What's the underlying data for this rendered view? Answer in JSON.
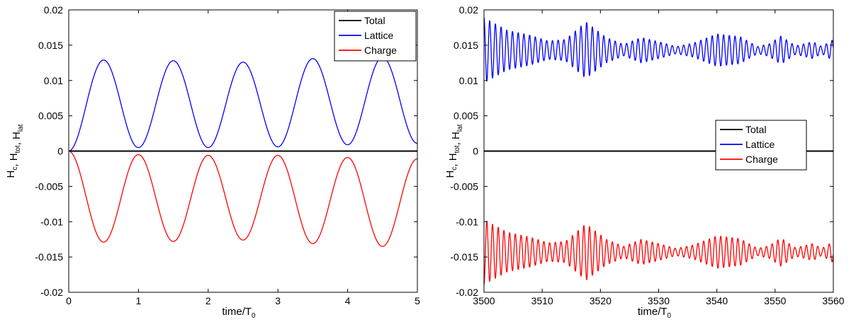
{
  "chart_data": [
    {
      "type": "line",
      "xlabel": "time/T",
      "xlabel_sub": "0",
      "ylabel_parts": [
        {
          "base": "H",
          "sub": "c"
        },
        {
          "sep": ", "
        },
        {
          "base": "H",
          "sub": "tot"
        },
        {
          "sep": ", "
        },
        {
          "base": "H",
          "sub": "lat"
        }
      ],
      "xlim": [
        0,
        5
      ],
      "ylim": [
        -0.02,
        0.02
      ],
      "xticks": [
        "0",
        "1",
        "2",
        "3",
        "4",
        "5"
      ],
      "yticks": [
        "-0.02",
        "-0.015",
        "-0.01",
        "-0.005",
        "0",
        "0.005",
        "0.01",
        "0.015",
        "0.02"
      ],
      "xtick_values": [
        0,
        1,
        2,
        3,
        4,
        5
      ],
      "ytick_values": [
        -0.02,
        -0.015,
        -0.01,
        -0.005,
        0,
        0.005,
        0.01,
        0.015,
        0.02
      ],
      "legend_position": "top-right",
      "series": [
        {
          "name": "Total",
          "color": "#000000",
          "model": "constant",
          "value": 0.0
        },
        {
          "name": "Lattice",
          "color": "#0000ff",
          "model": "periodic",
          "sign": 1,
          "period": 1.0,
          "amplitude": 0.0065,
          "center": 0.0066,
          "peaks": [
            [
              0.5,
              0.0129
            ],
            [
              1.5,
              0.0128
            ],
            [
              2.5,
              0.0126
            ],
            [
              3.5,
              0.0131
            ],
            [
              4.5,
              0.0133
            ]
          ],
          "troughs": [
            [
              0,
              0.0
            ],
            [
              1,
              0.0005
            ],
            [
              2,
              0.0005
            ],
            [
              3,
              0.0006
            ],
            [
              4,
              0.0009
            ],
            [
              5,
              0.0011
            ]
          ]
        },
        {
          "name": "Charge",
          "color": "#ff0000",
          "model": "periodic",
          "sign": -1,
          "period": 1.0,
          "amplitude": 0.0065,
          "center": -0.0066,
          "peaks": [
            [
              0.5,
              -0.0129
            ],
            [
              1.5,
              -0.0128
            ],
            [
              2.5,
              -0.0126
            ],
            [
              3.5,
              -0.0131
            ],
            [
              4.5,
              -0.0135
            ]
          ],
          "troughs": [
            [
              0,
              0.0
            ],
            [
              1,
              -0.0005
            ],
            [
              2,
              -0.0006
            ],
            [
              3,
              -0.0006
            ],
            [
              4,
              -0.0009
            ],
            [
              5,
              -0.0011
            ]
          ]
        }
      ]
    },
    {
      "type": "line",
      "xlabel": "time/T",
      "xlabel_sub": "0",
      "ylabel_parts": [
        {
          "base": "H",
          "sub": "c"
        },
        {
          "sep": ", "
        },
        {
          "base": "H",
          "sub": "tot"
        },
        {
          "sep": ", "
        },
        {
          "base": "H",
          "sub": "lat"
        }
      ],
      "xlim": [
        3500,
        3560
      ],
      "ylim": [
        -0.02,
        0.02
      ],
      "xticks": [
        "3500",
        "3510",
        "3520",
        "3530",
        "3540",
        "3550",
        "3560"
      ],
      "yticks": [
        "-0.02",
        "-0.015",
        "-0.01",
        "-0.005",
        "0",
        "0.005",
        "0.01",
        "0.015",
        "0.02"
      ],
      "xtick_values": [
        3500,
        3510,
        3520,
        3530,
        3540,
        3550,
        3560
      ],
      "ytick_values": [
        -0.02,
        -0.015,
        -0.01,
        -0.005,
        0,
        0.005,
        0.01,
        0.015,
        0.02
      ],
      "legend_position": "center-right",
      "series": [
        {
          "name": "Total",
          "color": "#000000",
          "model": "constant",
          "value": 0.0
        },
        {
          "name": "Lattice",
          "color": "#0000ff",
          "model": "beating",
          "sign": 1,
          "center": 0.0143,
          "period": 0.98,
          "envelope": [
            [
              3500,
              0.0046
            ],
            [
              3504,
              0.0028
            ],
            [
              3508,
              0.0021
            ],
            [
              3511,
              0.0013
            ],
            [
              3514,
              0.0015
            ],
            [
              3517.5,
              0.004
            ],
            [
              3521,
              0.0018
            ],
            [
              3524,
              0.0008
            ],
            [
              3527,
              0.0018
            ],
            [
              3530,
              0.0012
            ],
            [
              3533,
              0.0005
            ],
            [
              3536,
              0.001
            ],
            [
              3540,
              0.0023
            ],
            [
              3544,
              0.0019
            ],
            [
              3547,
              0.0005
            ],
            [
              3549,
              0.0009
            ],
            [
              3551,
              0.002
            ],
            [
              3553.5,
              0.0006
            ],
            [
              3556.5,
              0.0012
            ],
            [
              3558,
              0.0005
            ],
            [
              3560,
              0.0015
            ]
          ]
        },
        {
          "name": "Charge",
          "color": "#ff0000",
          "model": "beating",
          "sign": -1,
          "center": -0.0143,
          "period": 0.98,
          "envelope": [
            [
              3500,
              0.0046
            ],
            [
              3504,
              0.0028
            ],
            [
              3508,
              0.0021
            ],
            [
              3511,
              0.0013
            ],
            [
              3514,
              0.0015
            ],
            [
              3517.5,
              0.004
            ],
            [
              3521,
              0.0018
            ],
            [
              3524,
              0.0008
            ],
            [
              3527,
              0.0018
            ],
            [
              3530,
              0.0012
            ],
            [
              3533,
              0.0005
            ],
            [
              3536,
              0.001
            ],
            [
              3540,
              0.0023
            ],
            [
              3544,
              0.0019
            ],
            [
              3547,
              0.0005
            ],
            [
              3549,
              0.0009
            ],
            [
              3551,
              0.002
            ],
            [
              3553.5,
              0.0006
            ],
            [
              3556.5,
              0.0012
            ],
            [
              3558,
              0.0005
            ],
            [
              3560,
              0.0015
            ]
          ]
        }
      ]
    }
  ]
}
